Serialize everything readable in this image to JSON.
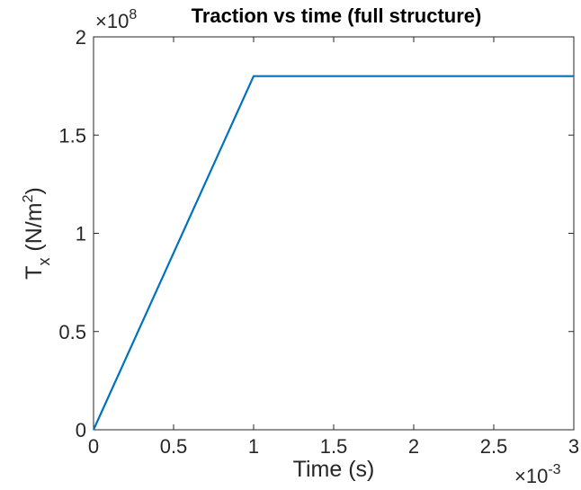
{
  "chart_data": {
    "type": "line",
    "title": "Traction vs time (full structure)",
    "xlabel": "Time (s)",
    "ylabel": {
      "main": "T",
      "subscript": "x",
      "unit_open": " (N/m",
      "unit_sup": "2",
      "unit_close": ")"
    },
    "xlim": [
      0,
      0.003
    ],
    "ylim": [
      0,
      200000000
    ],
    "x_ticks": [
      0,
      0.0005,
      0.001,
      0.0015,
      0.002,
      0.0025,
      0.003
    ],
    "x_tick_labels": [
      "0",
      "0.5",
      "1",
      "1.5",
      "2",
      "2.5",
      "3"
    ],
    "y_ticks": [
      0,
      50000000,
      100000000,
      150000000,
      200000000
    ],
    "y_tick_labels": [
      "0",
      "0.5",
      "1",
      "1.5",
      "2"
    ],
    "x_exponent": {
      "base": "×10",
      "power": "-3"
    },
    "y_exponent": {
      "base": "×10",
      "power": "8"
    },
    "grid": false,
    "series": [
      {
        "color": "#0072BD",
        "x": [
          0,
          0.001,
          0.003
        ],
        "y": [
          0,
          180000000,
          180000000
        ]
      }
    ]
  }
}
